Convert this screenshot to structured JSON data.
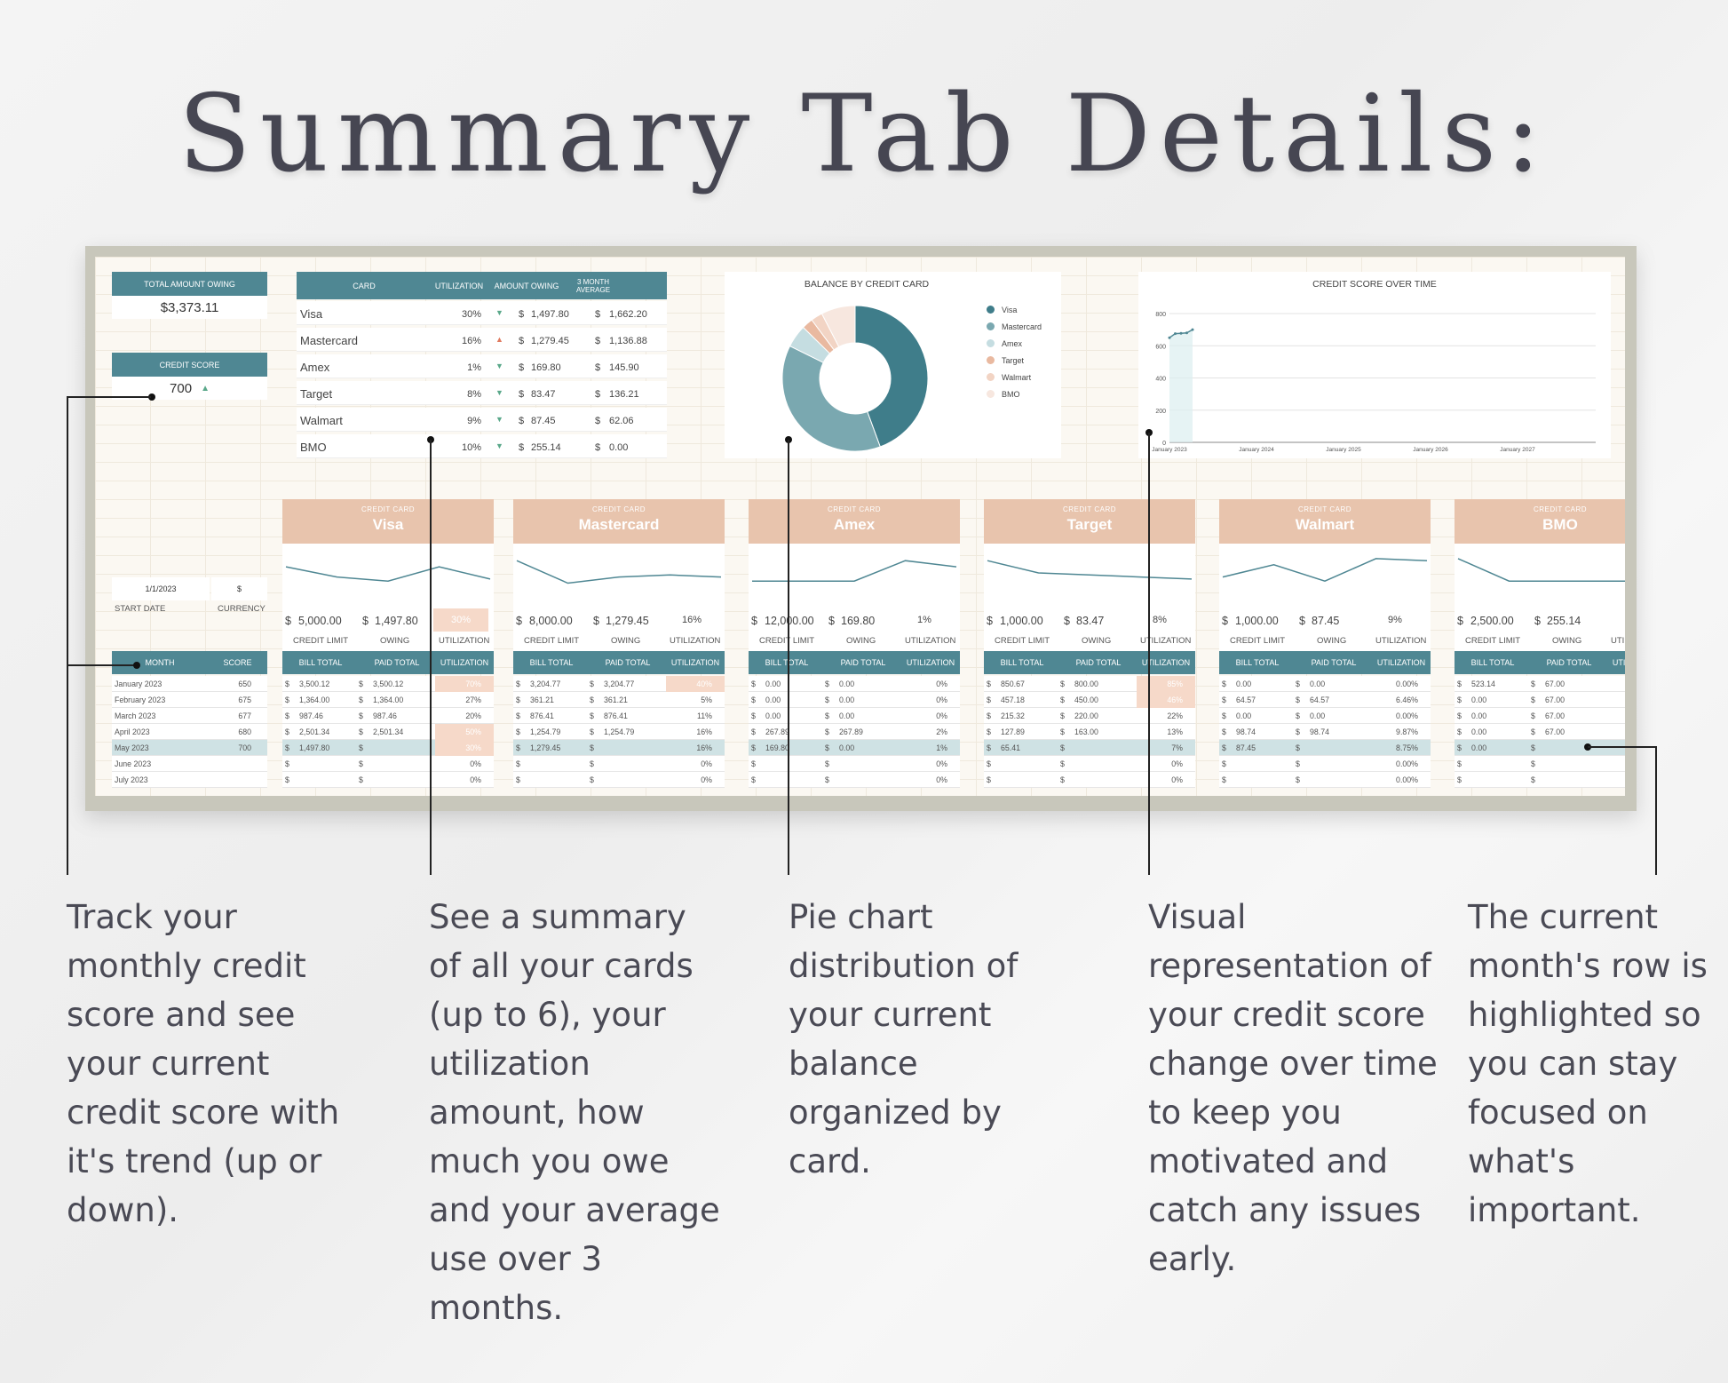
{
  "title": "Summary Tab Details:",
  "summary": {
    "total_label": "TOTAL AMOUNT OWING",
    "total_value": "$3,373.11",
    "score_label": "CREDIT SCORE",
    "score_value": "700",
    "score_trend": "▲",
    "start_date": "1/1/2023",
    "currency": "$",
    "start_date_label": "START DATE",
    "currency_label": "CURRENCY"
  },
  "card_table": {
    "headers": [
      "CARD",
      "UTILIZATION",
      "AMOUNT OWING",
      "3 MONTH AVERAGE"
    ],
    "rows": [
      {
        "card": "Visa",
        "util": "30%",
        "trend": "▼",
        "owing": "1,497.80",
        "avg": "1,662.20"
      },
      {
        "card": "Mastercard",
        "util": "16%",
        "trend": "▲",
        "owing": "1,279.45",
        "avg": "1,136.88"
      },
      {
        "card": "Amex",
        "util": "1%",
        "trend": "▼",
        "owing": "169.80",
        "avg": "145.90"
      },
      {
        "card": "Target",
        "util": "8%",
        "trend": "▼",
        "owing": "83.47",
        "avg": "136.21"
      },
      {
        "card": "Walmart",
        "util": "9%",
        "trend": "▼",
        "owing": "87.45",
        "avg": "62.06"
      },
      {
        "card": "BMO",
        "util": "10%",
        "trend": "▼",
        "owing": "255.14",
        "avg": "0.00"
      }
    ]
  },
  "pie": {
    "title": "BALANCE BY CREDIT CARD",
    "legend": [
      "Visa",
      "Mastercard",
      "Amex",
      "Target",
      "Walmart",
      "BMO"
    ]
  },
  "line": {
    "title": "CREDIT SCORE OVER TIME",
    "yticks": [
      "800",
      "600",
      "400",
      "200",
      "0"
    ],
    "xticks": [
      "January 2023",
      "January 2024",
      "January 2025",
      "January 2026",
      "January 2027"
    ]
  },
  "chart_data": [
    {
      "type": "pie",
      "title": "BALANCE BY CREDIT CARD",
      "categories": [
        "Visa",
        "Mastercard",
        "Amex",
        "Target",
        "Walmart",
        "BMO"
      ],
      "values": [
        1497.8,
        1279.45,
        169.8,
        83.47,
        87.45,
        255.14
      ],
      "colors": [
        "#3f7d8a",
        "#7aa8b0",
        "#c5dde1",
        "#e9b9a0",
        "#f2d4c4",
        "#f7e7df"
      ],
      "legend": "right"
    },
    {
      "type": "line",
      "title": "CREDIT SCORE OVER TIME",
      "x": [
        "January 2023",
        "February 2023",
        "March 2023",
        "April 2023",
        "May 2023"
      ],
      "values": [
        650,
        675,
        677,
        680,
        700
      ],
      "ylim": [
        0,
        800
      ],
      "grid": true
    }
  ],
  "cards": [
    {
      "sub": "CREDIT CARD",
      "name": "Visa",
      "limit": "5,000.00",
      "owing": "1,497.80",
      "util": "30%",
      "util_hl": true
    },
    {
      "sub": "CREDIT CARD",
      "name": "Mastercard",
      "limit": "8,000.00",
      "owing": "1,279.45",
      "util": "16%",
      "util_hl": false
    },
    {
      "sub": "CREDIT CARD",
      "name": "Amex",
      "limit": "12,000.00",
      "owing": "169.80",
      "util": "1%",
      "util_hl": false
    },
    {
      "sub": "CREDIT CARD",
      "name": "Target",
      "limit": "1,000.00",
      "owing": "83.47",
      "util": "8%",
      "util_hl": false
    },
    {
      "sub": "CREDIT CARD",
      "name": "Walmart",
      "limit": "1,000.00",
      "owing": "87.45",
      "util": "9%",
      "util_hl": false
    },
    {
      "sub": "CREDIT CARD",
      "name": "BMO",
      "limit": "2,500.00",
      "owing": "255.14",
      "util": "",
      "util_hl": false
    }
  ],
  "stat_labels": {
    "limit": "CREDIT LIMIT",
    "owing": "OWING",
    "util": "UTILIZATION",
    "dollar": "$"
  },
  "month_table": {
    "headers": [
      "MONTH",
      "SCORE"
    ],
    "rows": [
      [
        "January 2023",
        "650"
      ],
      [
        "February 2023",
        "675"
      ],
      [
        "March 2023",
        "677"
      ],
      [
        "April 2023",
        "680"
      ],
      [
        "May 2023",
        "700"
      ],
      [
        "June 2023",
        ""
      ],
      [
        "July 2023",
        ""
      ]
    ]
  },
  "bill_headers": [
    "BILL TOTAL",
    "PAID TOTAL",
    "UTILIZATION"
  ],
  "bills": [
    [
      [
        "3,500.12",
        "3,500.12",
        "70%"
      ],
      [
        "1,364.00",
        "1,364.00",
        "27%"
      ],
      [
        "987.46",
        "987.46",
        "20%"
      ],
      [
        "2,501.34",
        "2,501.34",
        "50%"
      ],
      [
        "1,497.80",
        "",
        "30%"
      ],
      [
        "",
        "",
        "0%"
      ],
      [
        "",
        "",
        "0%"
      ]
    ],
    [
      [
        "3,204.77",
        "3,204.77",
        "40%"
      ],
      [
        "361.21",
        "361.21",
        "5%"
      ],
      [
        "876.41",
        "876.41",
        "11%"
      ],
      [
        "1,254.79",
        "1,254.79",
        "16%"
      ],
      [
        "1,279.45",
        "",
        "16%"
      ],
      [
        "",
        "",
        "0%"
      ],
      [
        "",
        "",
        "0%"
      ]
    ],
    [
      [
        "0.00",
        "0.00",
        "0%"
      ],
      [
        "0.00",
        "0.00",
        "0%"
      ],
      [
        "0.00",
        "0.00",
        "0%"
      ],
      [
        "267.89",
        "267.89",
        "2%"
      ],
      [
        "169.80",
        "0.00",
        "1%"
      ],
      [
        "",
        "",
        "0%"
      ],
      [
        "",
        "",
        "0%"
      ]
    ],
    [
      [
        "850.67",
        "800.00",
        "85%"
      ],
      [
        "457.18",
        "450.00",
        "46%"
      ],
      [
        "215.32",
        "220.00",
        "22%"
      ],
      [
        "127.89",
        "163.00",
        "13%"
      ],
      [
        "65.41",
        "",
        "7%"
      ],
      [
        "",
        "",
        "0%"
      ],
      [
        "",
        "",
        "0%"
      ]
    ],
    [
      [
        "0.00",
        "0.00",
        "0.00%"
      ],
      [
        "64.57",
        "64.57",
        "6.46%"
      ],
      [
        "0.00",
        "0.00",
        "0.00%"
      ],
      [
        "98.74",
        "98.74",
        "9.87%"
      ],
      [
        "87.45",
        "",
        "8.75%"
      ],
      [
        "",
        "",
        "0.00%"
      ],
      [
        "",
        "",
        "0.00%"
      ]
    ],
    [
      [
        "523.14",
        "67.00",
        ""
      ],
      [
        "0.00",
        "67.00",
        ""
      ],
      [
        "0.00",
        "67.00",
        ""
      ],
      [
        "0.00",
        "67.00",
        ""
      ],
      [
        "0.00",
        "",
        ""
      ],
      [
        "",
        "",
        " "
      ],
      [
        "",
        "",
        ""
      ]
    ]
  ],
  "annotations": [
    "Track your monthly credit score and see your current credit score with it's trend (up or down).",
    "See a summary of all your cards (up to 6), your utilization amount, how much you owe and your average use over 3 months.",
    "Pie chart distribution of your current balance organized by card.",
    "Visual representation of your credit score change over time to keep you motivated and catch any issues early.",
    "The current month's row is highlighted so you can stay focused on what's important."
  ],
  "colors": {
    "teal": "#4f8793",
    "peach": "#e8c4ad",
    "highlight": "#cfe2e4",
    "up": "#e07a5f",
    "down": "#5aa88a"
  }
}
